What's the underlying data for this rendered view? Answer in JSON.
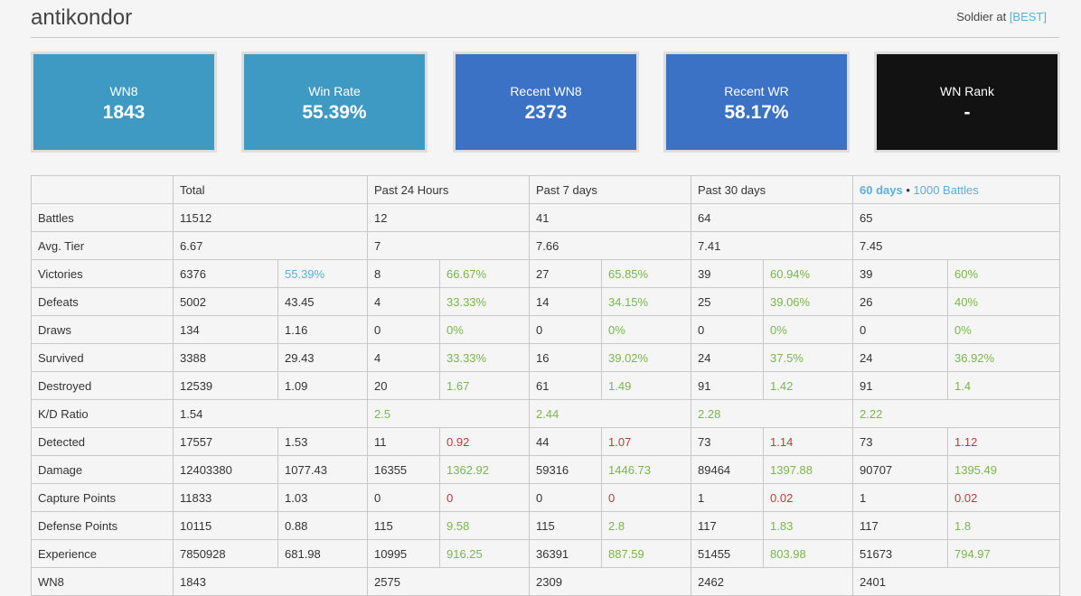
{
  "header": {
    "player_name": "antikondor",
    "clan_prefix": "Soldier at",
    "clan_tag": "[BEST]"
  },
  "cards": [
    {
      "label": "WN8",
      "value": "1843",
      "color": "#3e9ac2"
    },
    {
      "label": "Win Rate",
      "value": "55.39%",
      "color": "#3e9ac2"
    },
    {
      "label": "Recent WN8",
      "value": "2373",
      "color": "#3b72c6"
    },
    {
      "label": "Recent WR",
      "value": "58.17%",
      "color": "#3b72c6"
    },
    {
      "label": "WN Rank",
      "value": "-",
      "color": "#121212"
    }
  ],
  "table": {
    "headers": {
      "total": "Total",
      "h24": "Past 24 Hours",
      "d7": "Past 7 days",
      "d30": "Past 30 days",
      "d60_link": "60 days",
      "separator": "•",
      "battles_link": "1000 Battles"
    },
    "rows": [
      {
        "label": "Battles",
        "total": "11512",
        "h24": "12",
        "d7": "41",
        "d30": "64",
        "d60": "65"
      },
      {
        "label": "Avg. Tier",
        "total": "6.67",
        "h24": "7",
        "d7": "7.66",
        "d30": "7.41",
        "d60": "7.45"
      },
      {
        "label": "Victories",
        "total": "6376",
        "total_pct": "55.39%",
        "h24": "8",
        "h24_pct": "66.67%",
        "d7": "27",
        "d7_pct": "65.85%",
        "d30": "39",
        "d30_pct": "60.94%",
        "d60": "39",
        "d60_pct": "60%"
      },
      {
        "label": "Defeats",
        "total": "5002",
        "total_pct": "43.45",
        "h24": "4",
        "h24_pct": "33.33%",
        "d7": "14",
        "d7_pct": "34.15%",
        "d30": "25",
        "d30_pct": "39.06%",
        "d60": "26",
        "d60_pct": "40%"
      },
      {
        "label": "Draws",
        "total": "134",
        "total_pct": "1.16",
        "h24": "0",
        "h24_pct": "0%",
        "d7": "0",
        "d7_pct": "0%",
        "d30": "0",
        "d30_pct": "0%",
        "d60": "0",
        "d60_pct": "0%"
      },
      {
        "label": "Survived",
        "total": "3388",
        "total_pct": "29.43",
        "h24": "4",
        "h24_pct": "33.33%",
        "d7": "16",
        "d7_pct": "39.02%",
        "d30": "24",
        "d30_pct": "37.5%",
        "d60": "24",
        "d60_pct": "36.92%"
      },
      {
        "label": "Destroyed",
        "total": "12539",
        "total_pct": "1.09",
        "h24": "20",
        "h24_pct": "1.67",
        "d7": "61",
        "d7_pct": "1.49",
        "d30": "91",
        "d30_pct": "1.42",
        "d60": "91",
        "d60_pct": "1.4"
      },
      {
        "label": "K/D Ratio",
        "total": "1.54",
        "h24": "2.5",
        "d7": "2.44",
        "d30": "2.28",
        "d60": "2.22"
      },
      {
        "label": "Detected",
        "total": "17557",
        "total_pct": "1.53",
        "h24": "11",
        "h24_pct": "0.92",
        "d7": "44",
        "d7_pct": "1.07",
        "d30": "73",
        "d30_pct": "1.14",
        "d60": "73",
        "d60_pct": "1.12"
      },
      {
        "label": "Damage",
        "total": "12403380",
        "total_pct": "1077.43",
        "h24": "16355",
        "h24_pct": "1362.92",
        "d7": "59316",
        "d7_pct": "1446.73",
        "d30": "89464",
        "d30_pct": "1397.88",
        "d60": "90707",
        "d60_pct": "1395.49"
      },
      {
        "label": "Capture Points",
        "total": "11833",
        "total_pct": "1.03",
        "h24": "0",
        "h24_pct": "0",
        "d7": "0",
        "d7_pct": "0",
        "d30": "1",
        "d30_pct": "0.02",
        "d60": "1",
        "d60_pct": "0.02"
      },
      {
        "label": "Defense Points",
        "total": "10115",
        "total_pct": "0.88",
        "h24": "115",
        "h24_pct": "9.58",
        "d7": "115",
        "d7_pct": "2.8",
        "d30": "117",
        "d30_pct": "1.83",
        "d60": "117",
        "d60_pct": "1.8"
      },
      {
        "label": "Experience",
        "total": "7850928",
        "total_pct": "681.98",
        "h24": "10995",
        "h24_pct": "916.25",
        "d7": "36391",
        "d7_pct": "887.59",
        "d30": "51455",
        "d30_pct": "803.98",
        "d60": "51673",
        "d60_pct": "794.97"
      },
      {
        "label": "WN8",
        "total": "1843",
        "h24": "2575",
        "d7": "2309",
        "d30": "2462",
        "d60": "2401"
      }
    ]
  },
  "colors": {
    "green": "#7ab648",
    "red": "#c03838",
    "blue": "#5bb0d6"
  }
}
